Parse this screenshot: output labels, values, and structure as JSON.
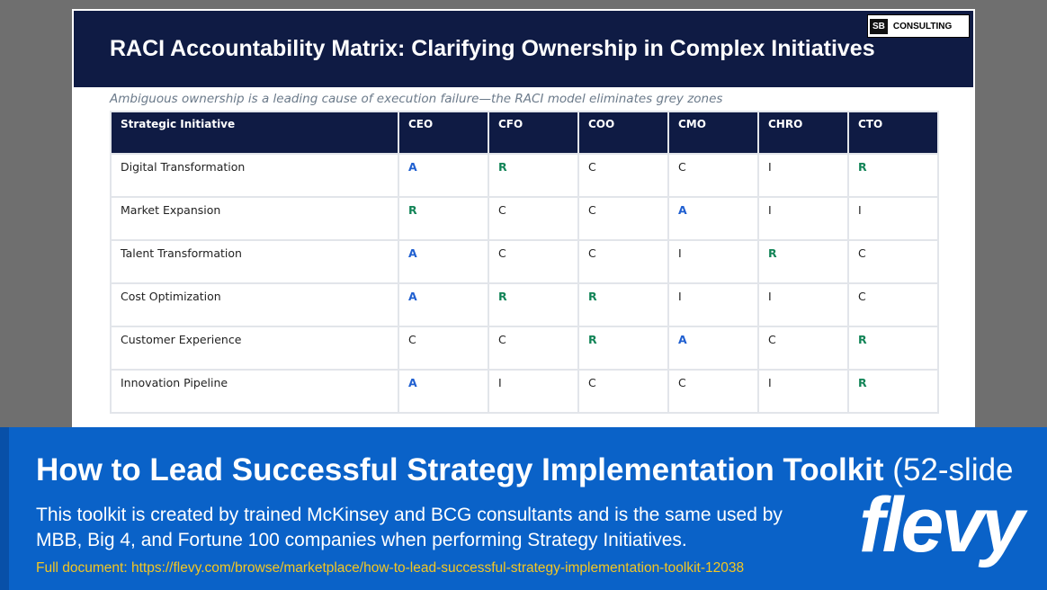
{
  "header": {
    "title": "RACI Accountability Matrix: Clarifying Ownership in Complex Initiatives",
    "logo_mark": "SB",
    "logo_text": "CONSULTING"
  },
  "subtitle": "Ambiguous ownership is a leading cause of execution failure—the RACI model eliminates grey zones",
  "table": {
    "columns": [
      "Strategic Initiative",
      "CEO",
      "CFO",
      "COO",
      "CMO",
      "CHRO",
      "CTO"
    ],
    "rows": [
      [
        "Digital Transformation",
        "A",
        "R",
        "C",
        "C",
        "I",
        "R"
      ],
      [
        "Market Expansion",
        "R",
        "C",
        "C",
        "A",
        "I",
        "I"
      ],
      [
        "Talent Transformation",
        "A",
        "C",
        "C",
        "I",
        "R",
        "C"
      ],
      [
        "Cost Optimization",
        "A",
        "R",
        "R",
        "I",
        "I",
        "C"
      ],
      [
        "Customer Experience",
        "C",
        "C",
        "R",
        "A",
        "C",
        "R"
      ],
      [
        "Innovation Pipeline",
        "A",
        "I",
        "C",
        "C",
        "I",
        "R"
      ]
    ],
    "cell_colors": {
      "A": "#1f5fd0",
      "R": "#128457"
    }
  },
  "banner": {
    "title": "How to Lead Successful Strategy Implementation Toolkit",
    "title_suffix": "(52-slide",
    "description": [
      "This toolkit is created by trained McKinsey and BCG consultants and is the same used by",
      "MBB, Big 4, and Fortune 100 companies when performing Strategy Initiatives."
    ],
    "url": "Full document: https://flevy.com/browse/marketplace/how-to-lead-successful-strategy-implementation-toolkit-12038",
    "logo": "flevy"
  }
}
